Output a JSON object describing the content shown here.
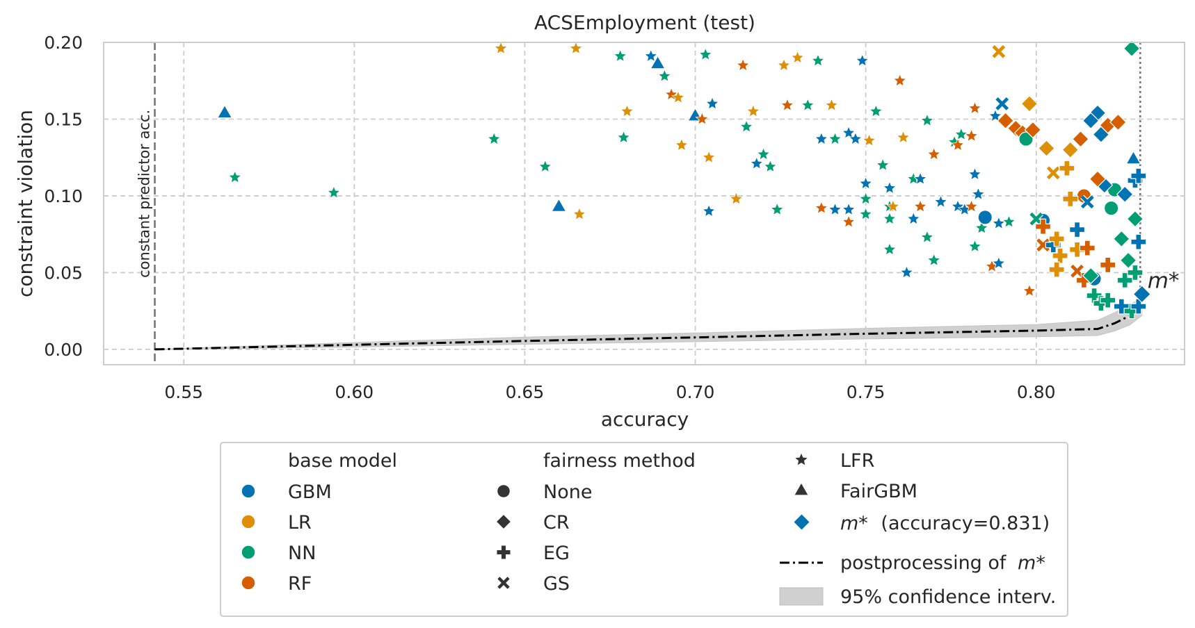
{
  "chart_data": {
    "type": "scatter",
    "title": "ACSEmployment (test)",
    "xlabel": "accuracy",
    "ylabel": "constraint violation",
    "xlim": [
      0.5265,
      0.8435
    ],
    "ylim": [
      -0.01,
      0.2
    ],
    "xticks": [
      "0.55",
      "0.60",
      "0.65",
      "0.70",
      "0.75",
      "0.80"
    ],
    "xtick_values": [
      0.55,
      0.6,
      0.65,
      0.7,
      0.75,
      0.8
    ],
    "yticks": [
      "0.00",
      "0.05",
      "0.10",
      "0.15",
      "0.20"
    ],
    "ytick_values": [
      0.0,
      0.05,
      0.1,
      0.15,
      0.2
    ],
    "grid": true,
    "colors": {
      "GBM": "#0173b2",
      "LR": "#de8f05",
      "NN": "#029e73",
      "RF": "#d55e00",
      "dark": "#333333",
      "ci": "#d0d0d0"
    },
    "constant_predictor": {
      "x": 0.5415,
      "label": "constant predictor acc."
    },
    "m_star": {
      "x": 0.831,
      "y": 0.036,
      "label": "m*"
    },
    "m_star_line_x": 0.8305,
    "postprocessing_curve": {
      "x": [
        0.5415,
        0.6,
        0.65,
        0.7,
        0.75,
        0.8,
        0.818,
        0.823,
        0.8275,
        0.831
      ],
      "y": [
        0.0,
        0.003,
        0.0055,
        0.0078,
        0.0102,
        0.0122,
        0.0133,
        0.017,
        0.022,
        0.028
      ],
      "ci_low": [
        0.0,
        0.0015,
        0.0033,
        0.005,
        0.0068,
        0.0082,
        0.009,
        0.012,
        0.016,
        0.022
      ],
      "ci_high": [
        0.0,
        0.0045,
        0.008,
        0.0107,
        0.0137,
        0.0162,
        0.019,
        0.024,
        0.029,
        0.034
      ]
    },
    "points": [
      {
        "model": "GBM",
        "method": "FairGBM",
        "x": 0.562,
        "y": 0.154
      },
      {
        "model": "NN",
        "method": "LFR",
        "x": 0.565,
        "y": 0.112
      },
      {
        "model": "NN",
        "method": "LFR",
        "x": 0.594,
        "y": 0.102
      },
      {
        "model": "NN",
        "method": "LFR",
        "x": 0.641,
        "y": 0.137
      },
      {
        "model": "LR",
        "method": "LFR",
        "x": 0.643,
        "y": 0.196
      },
      {
        "model": "NN",
        "method": "LFR",
        "x": 0.656,
        "y": 0.119
      },
      {
        "model": "GBM",
        "method": "FairGBM",
        "x": 0.66,
        "y": 0.093
      },
      {
        "model": "LR",
        "method": "LFR",
        "x": 0.665,
        "y": 0.196
      },
      {
        "model": "LR",
        "method": "LFR",
        "x": 0.666,
        "y": 0.088
      },
      {
        "model": "NN",
        "method": "LFR",
        "x": 0.678,
        "y": 0.191
      },
      {
        "model": "NN",
        "method": "LFR",
        "x": 0.679,
        "y": 0.138
      },
      {
        "model": "LR",
        "method": "LFR",
        "x": 0.68,
        "y": 0.155
      },
      {
        "model": "GBM",
        "method": "LFR",
        "x": 0.687,
        "y": 0.191
      },
      {
        "model": "GBM",
        "method": "FairGBM",
        "x": 0.689,
        "y": 0.186
      },
      {
        "model": "NN",
        "method": "LFR",
        "x": 0.691,
        "y": 0.178
      },
      {
        "model": "RF",
        "method": "LFR",
        "x": 0.693,
        "y": 0.166
      },
      {
        "model": "LR",
        "method": "LFR",
        "x": 0.695,
        "y": 0.164
      },
      {
        "model": "LR",
        "method": "LFR",
        "x": 0.696,
        "y": 0.133
      },
      {
        "model": "GBM",
        "method": "FairGBM",
        "x": 0.7,
        "y": 0.152
      },
      {
        "model": "RF",
        "method": "LFR",
        "x": 0.702,
        "y": 0.15
      },
      {
        "model": "NN",
        "method": "LFR",
        "x": 0.703,
        "y": 0.192
      },
      {
        "model": "GBM",
        "method": "LFR",
        "x": 0.704,
        "y": 0.09
      },
      {
        "model": "LR",
        "method": "LFR",
        "x": 0.704,
        "y": 0.125
      },
      {
        "model": "GBM",
        "method": "LFR",
        "x": 0.705,
        "y": 0.16
      },
      {
        "model": "LR",
        "method": "LFR",
        "x": 0.712,
        "y": 0.098
      },
      {
        "model": "RF",
        "method": "LFR",
        "x": 0.714,
        "y": 0.185
      },
      {
        "model": "NN",
        "method": "LFR",
        "x": 0.715,
        "y": 0.145
      },
      {
        "model": "LR",
        "method": "LFR",
        "x": 0.717,
        "y": 0.155
      },
      {
        "model": "GBM",
        "method": "LFR",
        "x": 0.718,
        "y": 0.121
      },
      {
        "model": "NN",
        "method": "LFR",
        "x": 0.72,
        "y": 0.127
      },
      {
        "model": "NN",
        "method": "LFR",
        "x": 0.722,
        "y": 0.119
      },
      {
        "model": "NN",
        "method": "LFR",
        "x": 0.724,
        "y": 0.091
      },
      {
        "model": "LR",
        "method": "LFR",
        "x": 0.726,
        "y": 0.185
      },
      {
        "model": "RF",
        "method": "LFR",
        "x": 0.727,
        "y": 0.159
      },
      {
        "model": "LR",
        "method": "LFR",
        "x": 0.73,
        "y": 0.19
      },
      {
        "model": "NN",
        "method": "LFR",
        "x": 0.733,
        "y": 0.159
      },
      {
        "model": "NN",
        "method": "LFR",
        "x": 0.736,
        "y": 0.188
      },
      {
        "model": "GBM",
        "method": "LFR",
        "x": 0.737,
        "y": 0.137
      },
      {
        "model": "RF",
        "method": "LFR",
        "x": 0.737,
        "y": 0.092
      },
      {
        "model": "LR",
        "method": "LFR",
        "x": 0.74,
        "y": 0.159
      },
      {
        "model": "GBM",
        "method": "LFR",
        "x": 0.741,
        "y": 0.091
      },
      {
        "model": "NN",
        "method": "LFR",
        "x": 0.741,
        "y": 0.137
      },
      {
        "model": "RF",
        "method": "LFR",
        "x": 0.745,
        "y": 0.083
      },
      {
        "model": "GBM",
        "method": "LFR",
        "x": 0.745,
        "y": 0.091
      },
      {
        "model": "GBM",
        "method": "LFR",
        "x": 0.745,
        "y": 0.141
      },
      {
        "model": "GBM",
        "method": "LFR",
        "x": 0.747,
        "y": 0.137
      },
      {
        "model": "GBM",
        "method": "LFR",
        "x": 0.749,
        "y": 0.188
      },
      {
        "model": "GBM",
        "method": "LFR",
        "x": 0.75,
        "y": 0.108
      },
      {
        "model": "NN",
        "method": "LFR",
        "x": 0.75,
        "y": 0.098
      },
      {
        "model": "NN",
        "method": "LFR",
        "x": 0.75,
        "y": 0.088
      },
      {
        "model": "LR",
        "method": "LFR",
        "x": 0.751,
        "y": 0.136
      },
      {
        "model": "NN",
        "method": "LFR",
        "x": 0.753,
        "y": 0.155
      },
      {
        "model": "NN",
        "method": "LFR",
        "x": 0.755,
        "y": 0.12
      },
      {
        "model": "GBM",
        "method": "LFR",
        "x": 0.757,
        "y": 0.105
      },
      {
        "model": "NN",
        "method": "LFR",
        "x": 0.757,
        "y": 0.093
      },
      {
        "model": "NN",
        "method": "LFR",
        "x": 0.757,
        "y": 0.085
      },
      {
        "model": "NN",
        "method": "LFR",
        "x": 0.757,
        "y": 0.065
      },
      {
        "model": "LR",
        "method": "LFR",
        "x": 0.758,
        "y": 0.093
      },
      {
        "model": "RF",
        "method": "LFR",
        "x": 0.76,
        "y": 0.175
      },
      {
        "model": "LR",
        "method": "LFR",
        "x": 0.761,
        "y": 0.138
      },
      {
        "model": "GBM",
        "method": "LFR",
        "x": 0.762,
        "y": 0.05
      },
      {
        "model": "NN",
        "method": "LFR",
        "x": 0.764,
        "y": 0.111
      },
      {
        "model": "GBM",
        "method": "LFR",
        "x": 0.764,
        "y": 0.085
      },
      {
        "model": "GBM",
        "method": "LFR",
        "x": 0.766,
        "y": 0.111
      },
      {
        "model": "RF",
        "method": "LFR",
        "x": 0.766,
        "y": 0.093
      },
      {
        "model": "NN",
        "method": "LFR",
        "x": 0.768,
        "y": 0.149
      },
      {
        "model": "NN",
        "method": "LFR",
        "x": 0.768,
        "y": 0.073
      },
      {
        "model": "RF",
        "method": "LFR",
        "x": 0.77,
        "y": 0.127
      },
      {
        "model": "NN",
        "method": "LFR",
        "x": 0.77,
        "y": 0.058
      },
      {
        "model": "GBM",
        "method": "LFR",
        "x": 0.772,
        "y": 0.096
      },
      {
        "model": "NN",
        "method": "LFR",
        "x": 0.776,
        "y": 0.135
      },
      {
        "model": "RF",
        "method": "LFR",
        "x": 0.777,
        "y": 0.133
      },
      {
        "model": "GBM",
        "method": "LFR",
        "x": 0.777,
        "y": 0.093
      },
      {
        "model": "NN",
        "method": "LFR",
        "x": 0.778,
        "y": 0.14
      },
      {
        "model": "GBM",
        "method": "LFR",
        "x": 0.779,
        "y": 0.091
      },
      {
        "model": "RF",
        "method": "LFR",
        "x": 0.781,
        "y": 0.093
      },
      {
        "model": "RF",
        "method": "LFR",
        "x": 0.781,
        "y": 0.139
      },
      {
        "model": "GBM",
        "method": "LFR",
        "x": 0.782,
        "y": 0.114
      },
      {
        "model": "NN",
        "method": "LFR",
        "x": 0.782,
        "y": 0.067
      },
      {
        "model": "RF",
        "method": "LFR",
        "x": 0.782,
        "y": 0.157
      },
      {
        "model": "GBM",
        "method": "LFR",
        "x": 0.783,
        "y": 0.101
      },
      {
        "model": "NN",
        "method": "LFR",
        "x": 0.784,
        "y": 0.079
      },
      {
        "model": "GBM",
        "method": "None",
        "x": 0.785,
        "y": 0.086
      },
      {
        "model": "RF",
        "method": "LFR",
        "x": 0.787,
        "y": 0.054
      },
      {
        "model": "GBM",
        "method": "LFR",
        "x": 0.788,
        "y": 0.152
      },
      {
        "model": "GBM",
        "method": "LFR",
        "x": 0.789,
        "y": 0.082
      },
      {
        "model": "GBM",
        "method": "LFR",
        "x": 0.789,
        "y": 0.056
      },
      {
        "model": "LR",
        "method": "GS",
        "x": 0.789,
        "y": 0.194
      },
      {
        "model": "RF",
        "method": "CR",
        "x": 0.791,
        "y": 0.149
      },
      {
        "model": "NN",
        "method": "LFR",
        "x": 0.792,
        "y": 0.083
      },
      {
        "model": "RF",
        "method": "CR",
        "x": 0.794,
        "y": 0.144
      },
      {
        "model": "RF",
        "method": "CR",
        "x": 0.796,
        "y": 0.141
      },
      {
        "model": "NN",
        "method": "None",
        "x": 0.797,
        "y": 0.137
      },
      {
        "model": "LR",
        "method": "CR",
        "x": 0.798,
        "y": 0.16
      },
      {
        "model": "RF",
        "method": "CR",
        "x": 0.799,
        "y": 0.143
      },
      {
        "model": "GBM",
        "method": "None",
        "x": 0.802,
        "y": 0.084
      },
      {
        "model": "LR",
        "method": "CR",
        "x": 0.803,
        "y": 0.131
      },
      {
        "model": "RF",
        "method": "LFR",
        "x": 0.798,
        "y": 0.038
      },
      {
        "model": "RF",
        "method": "None",
        "x": 0.814,
        "y": 0.1
      },
      {
        "model": "GBM",
        "method": "None",
        "x": 0.817,
        "y": 0.046
      },
      {
        "model": "NN",
        "method": "None",
        "x": 0.822,
        "y": 0.092
      },
      {
        "model": "NN",
        "method": "None",
        "x": 0.823,
        "y": 0.104
      },
      {
        "model": "RF",
        "method": "GS",
        "x": 0.802,
        "y": 0.068
      },
      {
        "model": "RF",
        "method": "GS",
        "x": 0.812,
        "y": 0.051
      },
      {
        "model": "GBM",
        "method": "GS",
        "x": 0.79,
        "y": 0.16
      },
      {
        "model": "GBM",
        "method": "GS",
        "x": 0.815,
        "y": 0.096
      },
      {
        "model": "NN",
        "method": "GS",
        "x": 0.8,
        "y": 0.085
      },
      {
        "model": "LR",
        "method": "GS",
        "x": 0.805,
        "y": 0.115
      },
      {
        "model": "RF",
        "method": "EG",
        "x": 0.802,
        "y": 0.08
      },
      {
        "model": "GBM",
        "method": "EG",
        "x": 0.805,
        "y": 0.068
      },
      {
        "model": "GBM",
        "method": "EG",
        "x": 0.812,
        "y": 0.078
      },
      {
        "model": "LR",
        "method": "EG",
        "x": 0.806,
        "y": 0.072
      },
      {
        "model": "LR",
        "method": "EG",
        "x": 0.807,
        "y": 0.061
      },
      {
        "model": "LR",
        "method": "EG",
        "x": 0.806,
        "y": 0.052
      },
      {
        "model": "LR",
        "method": "EG",
        "x": 0.81,
        "y": 0.098
      },
      {
        "model": "LR",
        "method": "EG",
        "x": 0.812,
        "y": 0.065
      },
      {
        "model": "RF",
        "method": "EG",
        "x": 0.814,
        "y": 0.045
      },
      {
        "model": "RF",
        "method": "EG",
        "x": 0.815,
        "y": 0.066
      },
      {
        "model": "NN",
        "method": "EG",
        "x": 0.817,
        "y": 0.035
      },
      {
        "model": "NN",
        "method": "EG",
        "x": 0.819,
        "y": 0.03
      },
      {
        "model": "NN",
        "method": "EG",
        "x": 0.821,
        "y": 0.032
      },
      {
        "model": "GBM",
        "method": "EG",
        "x": 0.825,
        "y": 0.028
      },
      {
        "model": "NN",
        "method": "EG",
        "x": 0.826,
        "y": 0.045
      },
      {
        "model": "NN",
        "method": "EG",
        "x": 0.828,
        "y": 0.025
      },
      {
        "model": "NN",
        "method": "CR",
        "x": 0.828,
        "y": 0.196
      },
      {
        "model": "GBM",
        "method": "CR",
        "x": 0.818,
        "y": 0.154
      },
      {
        "model": "GBM",
        "method": "CR",
        "x": 0.816,
        "y": 0.149
      },
      {
        "model": "GBM",
        "method": "CR",
        "x": 0.819,
        "y": 0.14
      },
      {
        "model": "RF",
        "method": "CR",
        "x": 0.821,
        "y": 0.146
      },
      {
        "model": "RF",
        "method": "CR",
        "x": 0.824,
        "y": 0.148
      },
      {
        "model": "LR",
        "method": "CR",
        "x": 0.81,
        "y": 0.13
      },
      {
        "model": "RF",
        "method": "CR",
        "x": 0.813,
        "y": 0.137
      },
      {
        "model": "GBM",
        "method": "FairGBM",
        "x": 0.8285,
        "y": 0.124
      },
      {
        "model": "GBM",
        "method": "CR",
        "x": 0.82,
        "y": 0.107
      },
      {
        "model": "RF",
        "method": "CR",
        "x": 0.818,
        "y": 0.111
      },
      {
        "model": "NN",
        "method": "CR",
        "x": 0.825,
        "y": 0.072
      },
      {
        "model": "NN",
        "method": "CR",
        "x": 0.827,
        "y": 0.058
      },
      {
        "model": "NN",
        "method": "CR",
        "x": 0.829,
        "y": 0.085
      },
      {
        "model": "GBM",
        "method": "CR",
        "x": 0.826,
        "y": 0.101
      },
      {
        "model": "NN",
        "method": "CR",
        "x": 0.816,
        "y": 0.048
      },
      {
        "model": "LR",
        "method": "EG",
        "x": 0.809,
        "y": 0.118
      },
      {
        "model": "GBM",
        "method": "EG",
        "x": 0.829,
        "y": 0.11
      },
      {
        "model": "GBM",
        "method": "EG",
        "x": 0.83,
        "y": 0.113
      },
      {
        "model": "GBM",
        "method": "EG",
        "x": 0.83,
        "y": 0.07
      },
      {
        "model": "NN",
        "method": "EG",
        "x": 0.829,
        "y": 0.05
      },
      {
        "model": "GBM",
        "method": "EG",
        "x": 0.83,
        "y": 0.028
      },
      {
        "model": "RF",
        "method": "EG",
        "x": 0.821,
        "y": 0.055
      }
    ],
    "legend": {
      "placement": "below",
      "base_model_title": "base model",
      "base_models": [
        "GBM",
        "LR",
        "NN",
        "RF"
      ],
      "fairness_method_title": "fairness method",
      "fairness_methods": [
        "None",
        "CR",
        "EG",
        "GS"
      ],
      "extra_methods": [
        "LFR",
        "FairGBM"
      ],
      "m_star_entry": "(accuracy=0.831)",
      "postprocessing_entry": "postprocessing of",
      "ci_entry": "95% confidence interv."
    }
  }
}
